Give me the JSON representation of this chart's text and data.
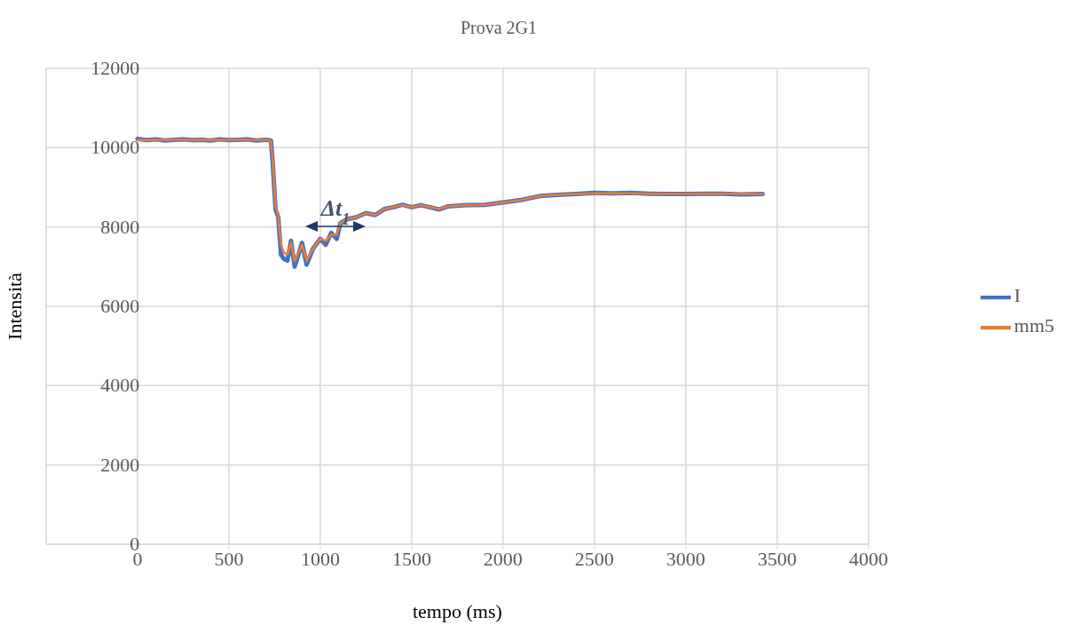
{
  "chart_data": {
    "type": "line",
    "title": "Prova 2G1",
    "xlabel": "tempo (ms)",
    "ylabel": "Intensità",
    "x": [
      0,
      50,
      100,
      150,
      200,
      250,
      300,
      350,
      400,
      450,
      500,
      550,
      600,
      650,
      700,
      730,
      740,
      755,
      770,
      785,
      800,
      820,
      840,
      860,
      880,
      900,
      925,
      960,
      1000,
      1030,
      1060,
      1090,
      1110,
      1150,
      1200,
      1250,
      1300,
      1350,
      1400,
      1450,
      1500,
      1550,
      1600,
      1650,
      1700,
      1800,
      1900,
      2000,
      2100,
      2200,
      2300,
      2400,
      2500,
      2600,
      2700,
      2800,
      2900,
      3000,
      3100,
      3200,
      3300,
      3420
    ],
    "series": [
      {
        "name": "I",
        "color": "#4472c4",
        "values": [
          10220,
          10190,
          10210,
          10180,
          10200,
          10210,
          10190,
          10200,
          10180,
          10210,
          10190,
          10200,
          10210,
          10180,
          10200,
          10180,
          9600,
          8450,
          8250,
          7300,
          7200,
          7150,
          7650,
          7000,
          7300,
          7600,
          7050,
          7450,
          7700,
          7550,
          7850,
          7700,
          8100,
          8200,
          8250,
          8350,
          8300,
          8450,
          8500,
          8560,
          8500,
          8550,
          8500,
          8440,
          8520,
          8550,
          8560,
          8620,
          8680,
          8780,
          8810,
          8830,
          8860,
          8850,
          8860,
          8840,
          8830,
          8830,
          8840,
          8840,
          8820,
          8830
        ]
      },
      {
        "name": "mm5",
        "color": "#ed7d31",
        "values": [
          10190,
          10190,
          10200,
          10190,
          10200,
          10200,
          10190,
          10200,
          10190,
          10200,
          10190,
          10200,
          10200,
          10190,
          10200,
          10170,
          9650,
          8500,
          8300,
          7550,
          7350,
          7300,
          7600,
          7150,
          7350,
          7550,
          7150,
          7450,
          7700,
          7650,
          7800,
          7800,
          8100,
          8200,
          8250,
          8350,
          8300,
          8450,
          8500,
          8550,
          8500,
          8550,
          8500,
          8450,
          8520,
          8550,
          8560,
          8620,
          8680,
          8780,
          8810,
          8830,
          8850,
          8850,
          8850,
          8840,
          8830,
          8830,
          8840,
          8840,
          8830,
          8830
        ]
      }
    ],
    "xlim": [
      -500,
      4000
    ],
    "xticks": [
      0,
      500,
      1000,
      1500,
      2000,
      2500,
      3000,
      3500,
      4000
    ],
    "ylim": [
      0,
      12000
    ],
    "yticks": [
      0,
      2000,
      4000,
      6000,
      8000,
      10000,
      12000
    ],
    "grid": true,
    "legend": "right",
    "marker": "none",
    "line_style": "solid",
    "annotations": [
      "Δt$_{1}$"
    ]
  }
}
